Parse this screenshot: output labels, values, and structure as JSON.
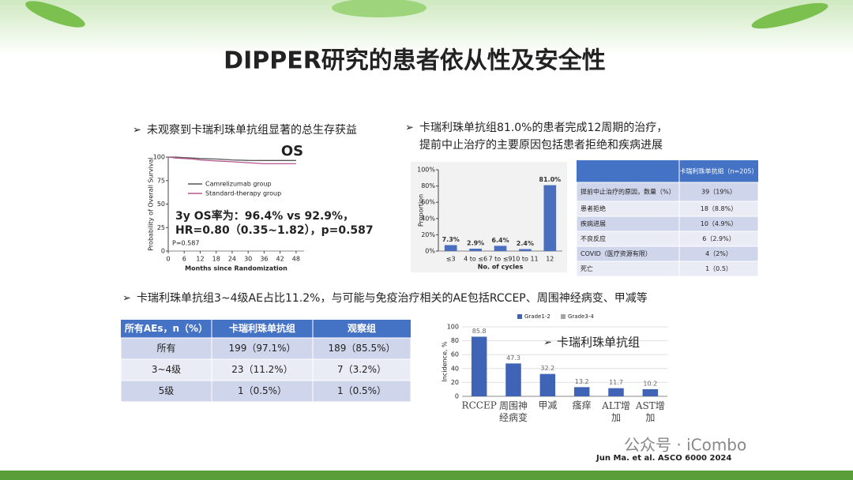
{
  "title": "DIPPER研究的患者依从性及安全性",
  "bullet_1": "未观察到卡瑞利珠单抗组显著的总生存获益",
  "bullet_2": [
    "卡瑞利珠单抗组81.0%的患者完成12周期的治疗，",
    "提前中止治疗的主要原因包括患者拒绝和疾病进展"
  ],
  "bullet_3": "卡瑞利珠单抗组3~4级AE占比11.2%，与可能与免疫治疗相关的AE包括RCCEP、周围神经病变、甲减等",
  "chart_data": [
    {
      "type": "line",
      "title": "OS",
      "x_label": "Months since Randomization",
      "y_label": "Probability of Overall Survival",
      "x": [
        0,
        3,
        6,
        9,
        12,
        18,
        24,
        30,
        36,
        42,
        48
      ],
      "series": [
        {
          "name": "Camrelizumab group",
          "color": "#555555",
          "values": [
            100,
            100,
            99.5,
            99,
            98.5,
            98,
            97,
            96.5,
            96.4,
            96.4,
            96.4
          ]
        },
        {
          "name": "Standard-therapy group",
          "color": "#b5568f",
          "values": [
            100,
            99,
            98.5,
            98,
            97,
            96,
            95,
            94,
            92.9,
            92.9,
            92.9
          ]
        }
      ],
      "xlim": [
        0,
        51
      ],
      "xticks": [
        0,
        6,
        12,
        18,
        24,
        30,
        36,
        42,
        48
      ],
      "ylim": [
        0,
        100
      ],
      "yticks": [
        0,
        25,
        50,
        75,
        100
      ],
      "annotations": [
        "3y OS率为：96.4% vs 92.9%，",
        "HR=0.80（0.35~1.82），p=0.587",
        "P=0.587"
      ]
    },
    {
      "type": "bar",
      "x_label": "No. of cycles",
      "y_label": "Proportion",
      "categories": [
        "≤3",
        "4 to ≤6",
        "7 to ≤9",
        "10 to 11",
        "12"
      ],
      "values": [
        7.3,
        2.9,
        6.4,
        2.4,
        81.0
      ],
      "value_labels": [
        "7.3%",
        "2.9%",
        "6.4%",
        "2.4%",
        "81.0%"
      ],
      "color": "#4a6fbf",
      "ylim": [
        0,
        100
      ],
      "yticks": [
        {
          "value": 0,
          "label": "0%"
        },
        {
          "value": 20,
          "label": "20%"
        },
        {
          "value": 40,
          "label": "40%"
        },
        {
          "value": 60,
          "label": "60%"
        },
        {
          "value": 80,
          "label": "80%"
        },
        {
          "value": 100,
          "label": "100%"
        }
      ]
    },
    {
      "type": "bar",
      "y_label": "Incidence, %",
      "categories": [
        "RCCEP",
        "周围神经病变",
        "甲减",
        "瘙痒",
        "ALT增加",
        "AST增加"
      ],
      "values": [
        85.8,
        47.3,
        32.2,
        13.2,
        11.7,
        10.2
      ],
      "color": "#3f63b5",
      "legend": [
        {
          "name": "Grade1-2",
          "color": "#3f63b5"
        },
        {
          "name": "Grade3-4",
          "color": "#a5a5a5"
        }
      ],
      "ylim": [
        0,
        100
      ],
      "yticks": [
        0,
        20,
        40,
        60,
        80,
        100
      ],
      "grid": true,
      "annotations": [
        "卡瑞利珠单抗组"
      ]
    }
  ],
  "reason_table": {
    "header": "卡瑞利珠单抗组（n=205）",
    "rows": [
      [
        "提前中止治疗的原因，数量（%）",
        "39（19%）"
      ],
      [
        "患者拒绝",
        "18（8.8%）"
      ],
      [
        "疾病进展",
        "10（4.9%）"
      ],
      [
        "不良反应",
        "6（2.9%）"
      ],
      [
        "COVID（医疗资源有限）",
        "4（2%）"
      ],
      [
        "死亡",
        "1（0.5）"
      ]
    ]
  },
  "ae_table": {
    "header": [
      "所有AEs，n（%）",
      "卡瑞利珠单抗组",
      "观察组"
    ],
    "rows": [
      [
        "所有",
        "199（97.1%）",
        "189（85.5%）"
      ],
      [
        "3~4级",
        "23（11.2%）",
        "7（3.2%）"
      ],
      [
        "5级",
        "1（0.5%）",
        "1（0.5%）"
      ]
    ]
  },
  "citation": "Jun Ma. et al. ASCO 6000 2024",
  "watermark": "公众号 · iCombo"
}
